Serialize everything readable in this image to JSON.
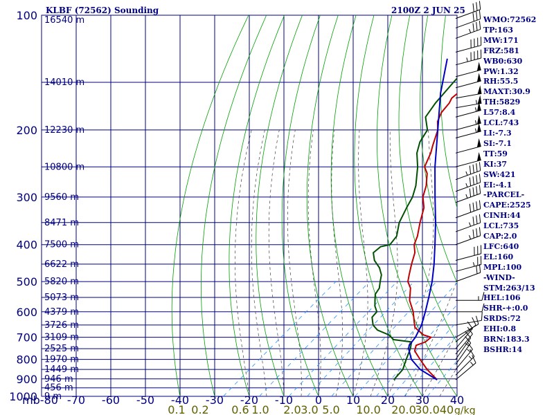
{
  "header": {
    "station": "KLBF (72562) Sounding",
    "valid_time": "2100Z  2 JUN 25"
  },
  "indices": [
    "WMO:72562",
    "TP:163",
    "MW:171",
    "FRZ:581",
    "WB0:630",
    "PW:1.32",
    "RH:55.5",
    "MAXT:30.9",
    "TH:5829",
    "L57:8.4",
    "LCL:743",
    "LI:-7.3",
    "SI:-7.1",
    "TT:59",
    "KI:37",
    "SW:421",
    "EI:-4.1",
    "-PARCEL-",
    "CAPE:2525",
    "CINH:44",
    "LCL:735",
    "CAP:2.0",
    "LFC:640",
    "EL:160",
    "MPL:100",
    "-WIND-",
    "STM:263/13",
    "HEL:106",
    "SHR-+:0.0",
    "SRDS:72",
    "EHI:0.8",
    "BRN:183.3",
    "BSHR:14"
  ],
  "colors": {
    "frame": "#000080",
    "dry_adiabat": "#00a000",
    "moist_adiabat": "#404040",
    "mixing_ratio": "#2090ff",
    "temperature": "#c00000",
    "dewpoint": "#005000",
    "parcel": "#0000c0",
    "text": "#000080",
    "mixing_label": "#606000"
  },
  "chart_data": {
    "type": "line",
    "title": "KLBF (72562) Sounding",
    "subtitle": "2100Z  2 JUN 25",
    "y_scale": "log-pressure",
    "ylim_hpa": [
      1000,
      100
    ],
    "xlim_c": [
      -80,
      40
    ],
    "pressure_ticks": [
      "100",
      "200",
      "300",
      "400",
      "500",
      "600",
      "700",
      "800",
      "900",
      "1000"
    ],
    "temp_ticks": [
      "mb-80",
      "-70",
      "-60",
      "-50",
      "-40",
      "-30",
      "-20",
      "-10",
      "0",
      "10",
      "20",
      "30",
      "40"
    ],
    "mixing_ratio_ticks": [
      "0.1",
      "0.2",
      "0.6",
      "1.0",
      "2.0",
      "3.0",
      "5.0",
      "10.0",
      "20.0",
      "30.0",
      "40"
    ],
    "mixing_unit": "g/kg",
    "height_labels": [
      {
        "p": 103,
        "label": "16540 m"
      },
      {
        "p": 150,
        "label": "14010 m"
      },
      {
        "p": 200,
        "label": "12230 m"
      },
      {
        "p": 250,
        "label": "10800 m"
      },
      {
        "p": 300,
        "label": "9560 m"
      },
      {
        "p": 350,
        "label": "8471 m"
      },
      {
        "p": 400,
        "label": "7500 m"
      },
      {
        "p": 450,
        "label": "6622 m"
      },
      {
        "p": 500,
        "label": "5820 m"
      },
      {
        "p": 550,
        "label": "5073 m"
      },
      {
        "p": 600,
        "label": "4379 m"
      },
      {
        "p": 650,
        "label": "3726 m"
      },
      {
        "p": 700,
        "label": "3109 m"
      },
      {
        "p": 750,
        "label": "2525 m"
      },
      {
        "p": 800,
        "label": "1970 m"
      },
      {
        "p": 850,
        "label": "1449 m"
      },
      {
        "p": 900,
        "label": "946 m"
      },
      {
        "p": 950,
        "label": "456 m"
      },
      {
        "p": 1000,
        "label": "9 m"
      }
    ],
    "series": [
      {
        "key": "temperature",
        "points": [
          [
            905,
            28.5
          ],
          [
            850,
            22
          ],
          [
            800,
            16.5
          ],
          [
            760,
            12
          ],
          [
            735,
            10.5
          ],
          [
            720,
            12
          ],
          [
            700,
            12
          ],
          [
            690,
            9
          ],
          [
            660,
            4
          ],
          [
            640,
            2
          ],
          [
            600,
            -2
          ],
          [
            560,
            -7
          ],
          [
            520,
            -11
          ],
          [
            500,
            -14
          ],
          [
            480,
            -16
          ],
          [
            450,
            -19
          ],
          [
            420,
            -22
          ],
          [
            400,
            -25
          ],
          [
            380,
            -27
          ],
          [
            350,
            -31
          ],
          [
            320,
            -35
          ],
          [
            300,
            -39
          ],
          [
            280,
            -42
          ],
          [
            260,
            -46
          ],
          [
            250,
            -49
          ],
          [
            230,
            -52
          ],
          [
            220,
            -54
          ],
          [
            200,
            -58
          ],
          [
            190,
            -61
          ],
          [
            180,
            -63
          ],
          [
            170,
            -64
          ],
          [
            165,
            -65
          ],
          [
            160,
            -65
          ],
          [
            150,
            -61
          ],
          [
            145,
            -61
          ],
          [
            130,
            -61.5
          ],
          [
            125,
            -60
          ],
          [
            100,
            -60
          ]
        ]
      },
      {
        "key": "dewpoint",
        "points": [
          [
            905,
            16
          ],
          [
            850,
            15
          ],
          [
            800,
            12.5
          ],
          [
            750,
            10
          ],
          [
            720,
            8
          ],
          [
            710,
            2
          ],
          [
            690,
            -1
          ],
          [
            670,
            -6
          ],
          [
            650,
            -9
          ],
          [
            620,
            -12
          ],
          [
            600,
            -12.5
          ],
          [
            580,
            -15
          ],
          [
            560,
            -17
          ],
          [
            540,
            -19
          ],
          [
            520,
            -20
          ],
          [
            500,
            -22
          ],
          [
            480,
            -24
          ],
          [
            460,
            -27
          ],
          [
            440,
            -31
          ],
          [
            420,
            -34
          ],
          [
            405,
            -34
          ],
          [
            400,
            -32
          ],
          [
            380,
            -33
          ],
          [
            350,
            -37
          ],
          [
            320,
            -40
          ],
          [
            300,
            -42
          ],
          [
            280,
            -45
          ],
          [
            250,
            -51
          ],
          [
            230,
            -56
          ],
          [
            215,
            -59
          ],
          [
            200,
            -61
          ],
          [
            185,
            -66
          ],
          [
            170,
            -68
          ],
          [
            150,
            -70
          ],
          [
            130,
            -72
          ],
          [
            100,
            -76
          ]
        ]
      },
      {
        "key": "parcel",
        "points": [
          [
            905,
            28.5
          ],
          [
            850,
            20
          ],
          [
            800,
            14
          ],
          [
            750,
            9.5
          ],
          [
            735,
            8.5
          ],
          [
            700,
            7.5
          ],
          [
            650,
            5
          ],
          [
            600,
            1.5
          ],
          [
            550,
            -2.5
          ],
          [
            500,
            -7
          ],
          [
            450,
            -12.5
          ],
          [
            400,
            -19
          ],
          [
            350,
            -26.5
          ],
          [
            300,
            -35.5
          ],
          [
            250,
            -46
          ],
          [
            200,
            -58
          ],
          [
            160,
            -70
          ],
          [
            130,
            -80
          ]
        ]
      }
    ],
    "wind_barbs": [
      {
        "p": 905,
        "dir": 230,
        "kt": 15
      },
      {
        "p": 880,
        "dir": 225,
        "kt": 15
      },
      {
        "p": 850,
        "dir": 220,
        "kt": 15
      },
      {
        "p": 825,
        "dir": 215,
        "kt": 15
      },
      {
        "p": 800,
        "dir": 215,
        "kt": 10
      },
      {
        "p": 775,
        "dir": 220,
        "kt": 10
      },
      {
        "p": 750,
        "dir": 220,
        "kt": 10
      },
      {
        "p": 720,
        "dir": 230,
        "kt": 10
      },
      {
        "p": 700,
        "dir": 240,
        "kt": 10
      },
      {
        "p": 650,
        "dir": 260,
        "kt": 10
      },
      {
        "p": 600,
        "dir": 270,
        "kt": 10
      },
      {
        "p": 560,
        "dir": 270,
        "kt": 15
      },
      {
        "p": 500,
        "dir": 250,
        "kt": 20
      },
      {
        "p": 470,
        "dir": 255,
        "kt": 25
      },
      {
        "p": 440,
        "dir": 255,
        "kt": 30
      },
      {
        "p": 400,
        "dir": 250,
        "kt": 35
      },
      {
        "p": 370,
        "dir": 250,
        "kt": 35
      },
      {
        "p": 340,
        "dir": 250,
        "kt": 40
      },
      {
        "p": 310,
        "dir": 250,
        "kt": 45
      },
      {
        "p": 290,
        "dir": 250,
        "kt": 45
      },
      {
        "p": 270,
        "dir": 250,
        "kt": 45
      },
      {
        "p": 250,
        "dir": 255,
        "kt": 50
      },
      {
        "p": 230,
        "dir": 255,
        "kt": 50
      },
      {
        "p": 210,
        "dir": 255,
        "kt": 55
      },
      {
        "p": 200,
        "dir": 255,
        "kt": 55
      },
      {
        "p": 185,
        "dir": 255,
        "kt": 55
      },
      {
        "p": 175,
        "dir": 260,
        "kt": 55
      },
      {
        "p": 165,
        "dir": 260,
        "kt": 50
      },
      {
        "p": 155,
        "dir": 255,
        "kt": 50
      },
      {
        "p": 145,
        "dir": 255,
        "kt": 50
      },
      {
        "p": 135,
        "dir": 255,
        "kt": 45
      },
      {
        "p": 125,
        "dir": 255,
        "kt": 40
      },
      {
        "p": 115,
        "dir": 250,
        "kt": 35
      },
      {
        "p": 108,
        "dir": 250,
        "kt": 30
      },
      {
        "p": 102,
        "dir": 250,
        "kt": 30
      }
    ]
  }
}
